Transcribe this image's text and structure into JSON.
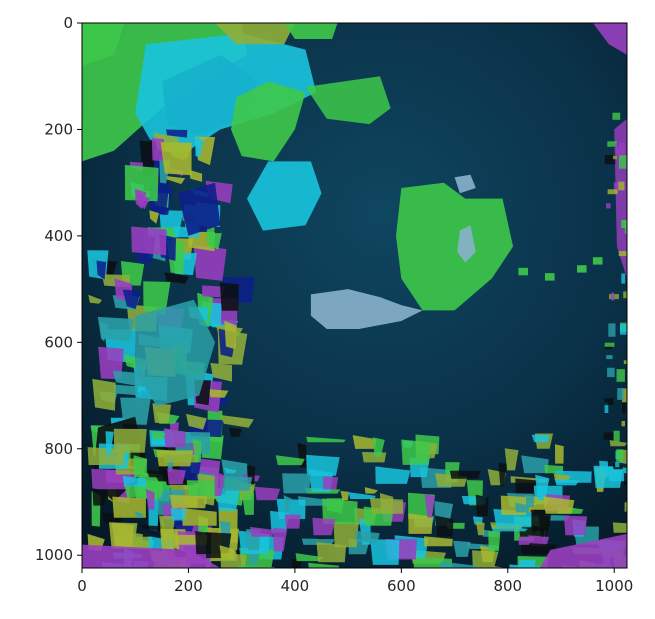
{
  "chart_data": {
    "type": "heatmap",
    "title": "",
    "xlabel": "",
    "ylabel": "",
    "image_size": [
      1024,
      1024
    ],
    "xlim": [
      0,
      1024
    ],
    "ylim": [
      1024,
      0
    ],
    "y_axis_inverted": true,
    "grid": false,
    "legend": "none",
    "x_ticks": [
      0,
      200,
      400,
      600,
      800,
      1000
    ],
    "y_ticks": [
      0,
      200,
      400,
      600,
      800,
      1000
    ],
    "x_tick_labels": [
      "0",
      "200",
      "400",
      "600",
      "800",
      "1000"
    ],
    "y_tick_labels": [
      "0",
      "200",
      "400",
      "600",
      "800",
      "1000"
    ],
    "description": "segmentation overlay of colored regions on a dark blue photograph",
    "colors": {
      "background": "#0a2f44",
      "green": "#3ec94a",
      "cyan": "#19c4de",
      "light_blue": "#8ab2cc",
      "olive": "#8fae3a",
      "yellow_green": "#a8b830",
      "purple": "#9a3fc0",
      "navy": "#0d1f8a",
      "teal": "#2aa0a8",
      "black": "#0a0f12"
    }
  }
}
